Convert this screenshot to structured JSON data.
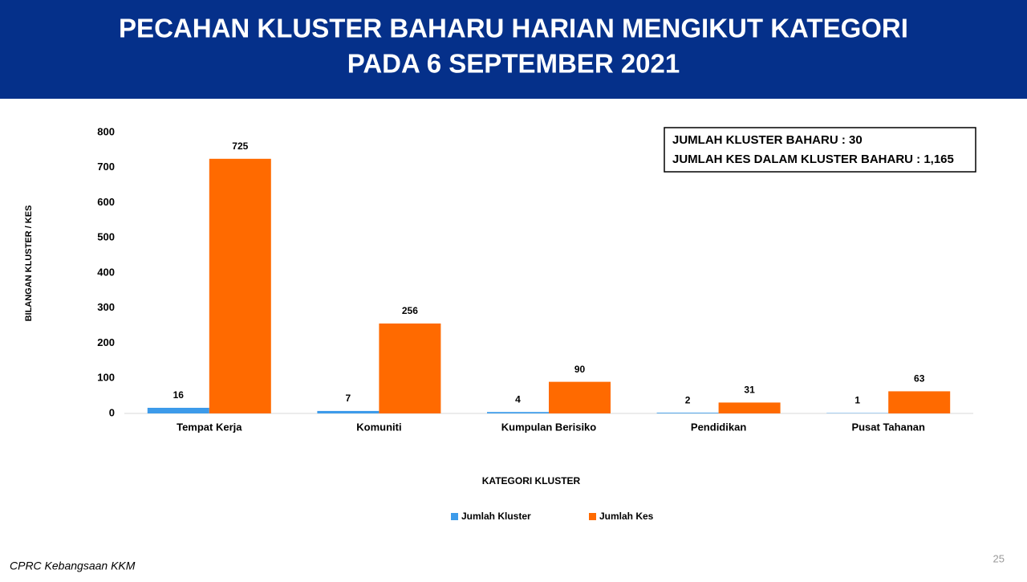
{
  "chart_data": {
    "type": "bar",
    "title": [
      "PECAHAN KLUSTER BAHARU HARIAN MENGIKUT KATEGORI",
      "PADA 6 SEPTEMBER 2021"
    ],
    "annotation": [
      "JUMLAH KLUSTER BAHARU : 30",
      "JUMLAH KES DALAM KLUSTER BAHARU : 1,165"
    ],
    "y_label": "BILANGAN KLUSTER / KES",
    "x_label": "KATEGORI KLUSTER",
    "categories": [
      "Tempat Kerja",
      "Komuniti",
      "Kumpulan Berisiko",
      "Pendidikan",
      "Pusat Tahanan"
    ],
    "series": [
      {
        "name": "Jumlah Kluster",
        "color": "#3d9bea",
        "values": [
          16,
          7,
          4,
          2,
          1
        ]
      },
      {
        "name": "Jumlah Kes",
        "color": "#ff6a00",
        "values": [
          725,
          256,
          90,
          31,
          63
        ]
      }
    ],
    "ylim": [
      0,
      800
    ],
    "yticks": [
      0,
      100,
      200,
      300,
      400,
      500,
      600,
      700,
      800
    ],
    "grid": false,
    "legend": "bottom",
    "footer": "CPRC Kebangsaan KKM",
    "page_number": 25
  }
}
